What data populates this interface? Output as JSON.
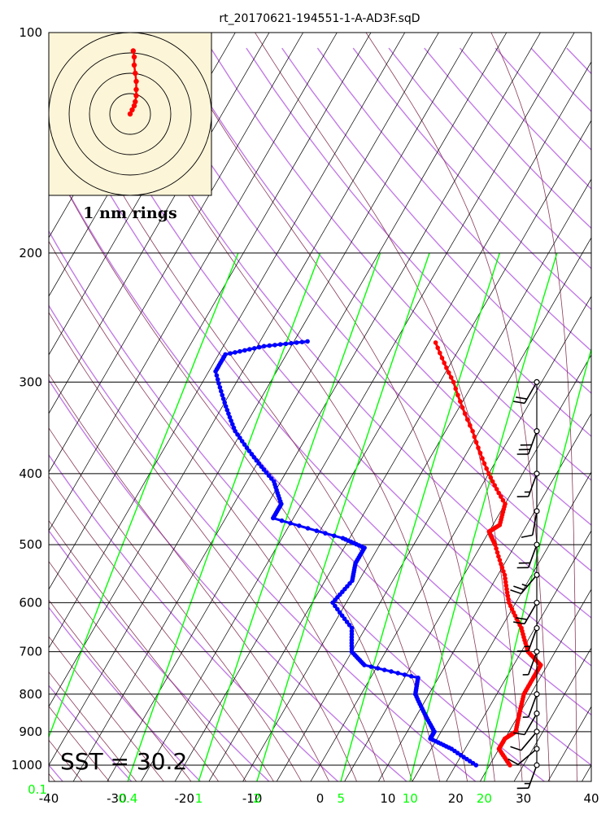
{
  "title": "rt_20170621-194551-1-A-AD3F.sqD",
  "sst_label": "SST = 30.2",
  "hodograph_label": "1 nm rings",
  "chart_data": {
    "type": "skew-t",
    "pressure_ticks": [
      100,
      200,
      300,
      400,
      500,
      600,
      700,
      800,
      900,
      1000
    ],
    "temperature_ticks": [
      -40,
      -30,
      -20,
      -10,
      0,
      10,
      20,
      30,
      40
    ],
    "mixing_ratio_ticks": [
      "0.1",
      "0.4",
      "1",
      "2",
      "5",
      "10",
      "20"
    ],
    "xlim": [
      -40,
      40
    ],
    "ylim": [
      1050,
      100
    ],
    "temperature_profile": [
      {
        "p": 1000,
        "t": 28
      },
      {
        "p": 950,
        "t": 25
      },
      {
        "p": 920,
        "t": 25
      },
      {
        "p": 900,
        "t": 26
      },
      {
        "p": 850,
        "t": 25
      },
      {
        "p": 800,
        "t": 24
      },
      {
        "p": 760,
        "t": 24
      },
      {
        "p": 730,
        "t": 24
      },
      {
        "p": 700,
        "t": 21
      },
      {
        "p": 650,
        "t": 18
      },
      {
        "p": 600,
        "t": 14
      },
      {
        "p": 550,
        "t": 11
      },
      {
        "p": 500,
        "t": 7
      },
      {
        "p": 480,
        "t": 5
      },
      {
        "p": 470,
        "t": 6
      },
      {
        "p": 440,
        "t": 5
      },
      {
        "p": 400,
        "t": 0
      },
      {
        "p": 350,
        "t": -6
      },
      {
        "p": 300,
        "t": -13
      },
      {
        "p": 265,
        "t": -19
      }
    ],
    "dewpoint_profile": [
      {
        "p": 1000,
        "t": 23
      },
      {
        "p": 950,
        "t": 18
      },
      {
        "p": 920,
        "t": 14
      },
      {
        "p": 900,
        "t": 14
      },
      {
        "p": 850,
        "t": 11
      },
      {
        "p": 800,
        "t": 8
      },
      {
        "p": 760,
        "t": 7
      },
      {
        "p": 730,
        "t": -2
      },
      {
        "p": 700,
        "t": -5
      },
      {
        "p": 650,
        "t": -7
      },
      {
        "p": 600,
        "t": -12
      },
      {
        "p": 560,
        "t": -11
      },
      {
        "p": 530,
        "t": -12
      },
      {
        "p": 505,
        "t": -12
      },
      {
        "p": 490,
        "t": -16
      },
      {
        "p": 460,
        "t": -28
      },
      {
        "p": 440,
        "t": -28
      },
      {
        "p": 410,
        "t": -31
      },
      {
        "p": 380,
        "t": -36
      },
      {
        "p": 350,
        "t": -41
      },
      {
        "p": 320,
        "t": -45
      },
      {
        "p": 290,
        "t": -49
      },
      {
        "p": 275,
        "t": -49
      },
      {
        "p": 268,
        "t": -44
      },
      {
        "p": 264,
        "t": -38
      }
    ],
    "wind_barbs": [
      {
        "p": 1000,
        "dir": 200,
        "spd": 15
      },
      {
        "p": 950,
        "dir": 230,
        "spd": 10
      },
      {
        "p": 900,
        "dir": 220,
        "spd": 10
      },
      {
        "p": 850,
        "dir": 210,
        "spd": 10
      },
      {
        "p": 800,
        "dir": 200,
        "spd": 5
      },
      {
        "p": 700,
        "dir": 200,
        "spd": 5
      },
      {
        "p": 650,
        "dir": 200,
        "spd": 15
      },
      {
        "p": 600,
        "dir": 210,
        "spd": 20
      },
      {
        "p": 550,
        "dir": 220,
        "spd": 25
      },
      {
        "p": 500,
        "dir": 200,
        "spd": 20
      },
      {
        "p": 450,
        "dir": 190,
        "spd": 10
      },
      {
        "p": 400,
        "dir": 200,
        "spd": 15
      },
      {
        "p": 350,
        "dir": 200,
        "spd": 30
      },
      {
        "p": 300,
        "dir": 210,
        "spd": 20
      }
    ],
    "hodograph_track": [
      {
        "u": 0,
        "v": 0
      },
      {
        "u": 0.1,
        "v": 0.2
      },
      {
        "u": 0.2,
        "v": 0.4
      },
      {
        "u": 0.25,
        "v": 0.6
      },
      {
        "u": 0.3,
        "v": 0.9
      },
      {
        "u": 0.3,
        "v": 1.2
      },
      {
        "u": 0.3,
        "v": 1.6
      },
      {
        "u": 0.25,
        "v": 2.0
      },
      {
        "u": 0.2,
        "v": 2.4
      },
      {
        "u": 0.2,
        "v": 2.8
      },
      {
        "u": 0.15,
        "v": 3.1
      }
    ],
    "hodograph_rings": [
      1,
      2,
      3,
      4
    ]
  }
}
